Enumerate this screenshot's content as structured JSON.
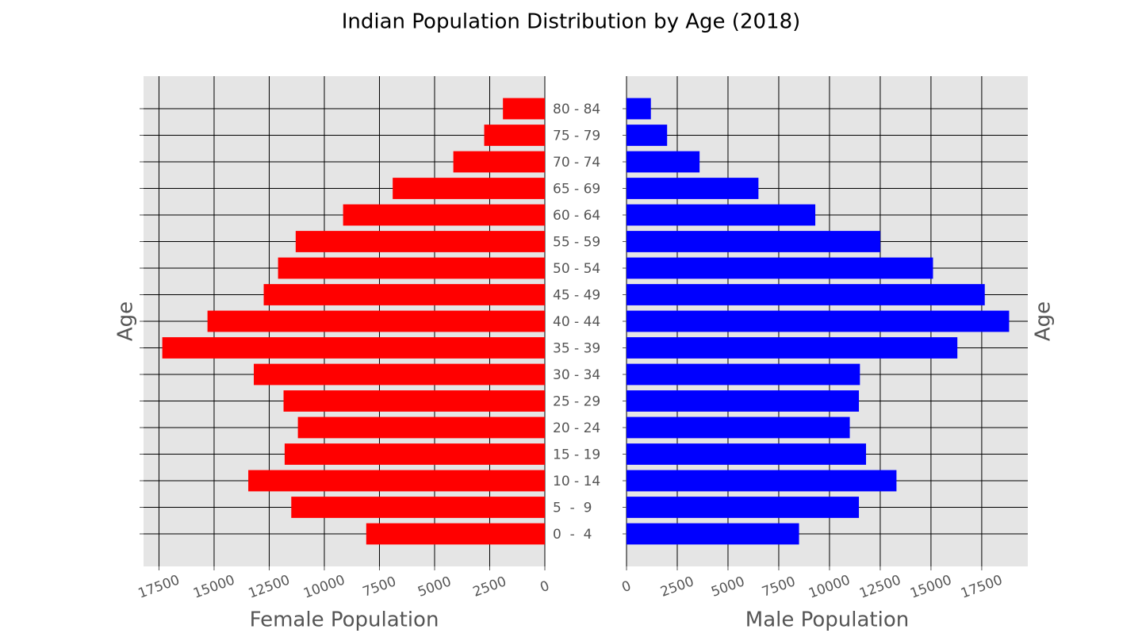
{
  "title": "Indian Population Distribution by Age (2018)",
  "chart_data": [
    {
      "type": "bar",
      "orientation": "horizontal",
      "x_inverted": true,
      "xlabel": "Female Population",
      "ylabel": "Age",
      "ylabel_side": "left",
      "category_labels_side": "right",
      "categories": [
        "0  -  4",
        "5  -  9",
        "10 - 14",
        "15 - 19",
        "20 - 24",
        "25 - 29",
        "30 - 34",
        "35 - 39",
        "40 - 44",
        "45 - 49",
        "50 - 54",
        "55 - 59",
        "60 - 64",
        "65 - 69",
        "70 - 74",
        "75 - 79",
        "80 - 84"
      ],
      "values": [
        8100,
        11500,
        13450,
        11800,
        11200,
        11850,
        13200,
        17350,
        15300,
        12750,
        12100,
        11300,
        9150,
        6900,
        4150,
        2750,
        1900
      ],
      "color": "#ff0000",
      "xlim": [
        0,
        18200
      ],
      "xticks": [
        0,
        2500,
        5000,
        7500,
        10000,
        12500,
        15000,
        17500
      ],
      "grid": true
    },
    {
      "type": "bar",
      "orientation": "horizontal",
      "x_inverted": false,
      "xlabel": "Male Population",
      "ylabel": "Age",
      "ylabel_side": "right",
      "values": [
        8500,
        11450,
        13300,
        11800,
        11000,
        11450,
        11500,
        16300,
        18850,
        17650,
        15100,
        12500,
        9300,
        6500,
        3600,
        2000,
        1200
      ],
      "color": "#0000ff",
      "xlim": [
        0,
        19770
      ],
      "xticks": [
        0,
        2500,
        5000,
        7500,
        10000,
        12500,
        15000,
        17500
      ],
      "grid": true
    }
  ]
}
